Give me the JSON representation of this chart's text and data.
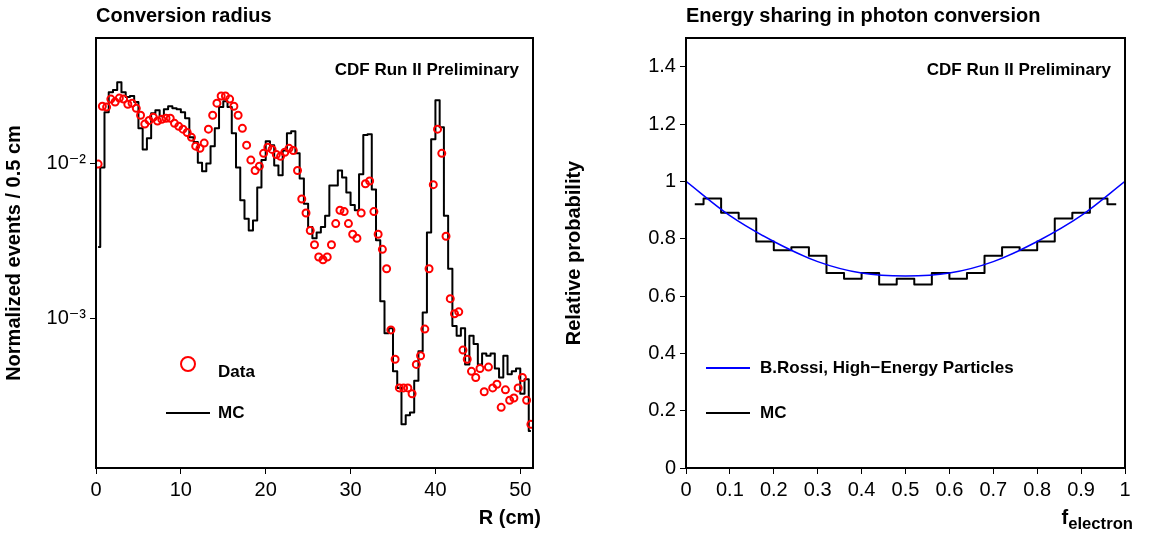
{
  "chart_data": [
    {
      "type": "scatter",
      "title": "Conversion radius",
      "xlabel": "R (cm)",
      "ylabel": "Normalized events / 0.5 cm",
      "annotations": [
        "CDF Run II Preliminary"
      ],
      "log": "y",
      "xlim": [
        0,
        51.5
      ],
      "xticks": [
        0,
        10,
        20,
        30,
        40,
        50
      ],
      "ylim": [
        0.00011,
        0.064
      ],
      "yticks": [
        {
          "value": 0.001,
          "label": "10⁻³"
        },
        {
          "value": 0.01,
          "label": "10⁻²"
        }
      ],
      "grid": false,
      "legend": "bottom left",
      "series": [
        {
          "name": "Data",
          "marker": "circle",
          "color": "#ff0000",
          "x": [
            0.25,
            0.75,
            1.25,
            1.75,
            2.25,
            2.75,
            3.25,
            3.75,
            4.25,
            4.75,
            5.25,
            5.75,
            6.25,
            6.75,
            7.25,
            7.75,
            8.25,
            8.75,
            9.25,
            9.75,
            10.25,
            10.75,
            11.25,
            11.75,
            12.25,
            12.75,
            13.25,
            13.75,
            14.25,
            14.75,
            15.25,
            15.75,
            16.25,
            16.75,
            17.25,
            17.75,
            18.25,
            18.75,
            19.25,
            19.75,
            20.25,
            20.75,
            21.25,
            21.75,
            22.25,
            22.75,
            23.25,
            23.75,
            24.25,
            24.75,
            25.25,
            25.75,
            26.25,
            26.75,
            27.25,
            27.75,
            28.25,
            28.75,
            29.25,
            29.75,
            30.25,
            30.75,
            31.25,
            31.75,
            32.25,
            32.75,
            33.25,
            33.75,
            34.25,
            34.75,
            35.25,
            35.75,
            36.25,
            36.75,
            37.25,
            37.75,
            38.25,
            38.75,
            39.25,
            39.75,
            40.25,
            40.75,
            41.25,
            41.75,
            42.25,
            42.75,
            43.25,
            43.75,
            44.25,
            44.75,
            45.25,
            45.75,
            46.25,
            46.75,
            47.25,
            47.75,
            48.25,
            48.75,
            49.25,
            49.75,
            50.25,
            50.75,
            51.25
          ],
          "values": [
            0.0099,
            0.0233,
            0.023,
            0.0259,
            0.0248,
            0.0263,
            0.0259,
            0.024,
            0.0244,
            0.0226,
            0.0204,
            0.0179,
            0.0189,
            0.0198,
            0.0187,
            0.0192,
            0.0195,
            0.0195,
            0.0181,
            0.0173,
            0.0166,
            0.0158,
            0.0147,
            0.0129,
            0.0125,
            0.0135,
            0.0166,
            0.0204,
            0.0244,
            0.0271,
            0.0271,
            0.0259,
            0.0233,
            0.0204,
            0.0168,
            0.0131,
            0.0105,
            0.009,
            0.0096,
            0.0116,
            0.0127,
            0.0123,
            0.0114,
            0.0111,
            0.0118,
            0.0125,
            0.0121,
            0.009,
            0.0059,
            0.0048,
            0.0037,
            0.003,
            0.0025,
            0.0024,
            0.0025,
            0.003,
            0.0041,
            0.005,
            0.0049,
            0.0041,
            0.0035,
            0.0033,
            0.0048,
            0.0074,
            0.0077,
            0.0049,
            0.0035,
            0.0028,
            0.0021,
            0.00085,
            0.00055,
            0.00036,
            0.00036,
            0.00036,
            0.00033,
            0.00051,
            0.00058,
            0.00086,
            0.0021,
            0.0073,
            0.0166,
            0.0116,
            0.0034,
            0.00135,
            0.00108,
            0.00111,
            0.00063,
            0.00055,
            0.00046,
            0.00042,
            0.00048,
            0.00034,
            0.00049,
            0.00036,
            0.00038,
            0.00027,
            0.00035,
            0.0003,
            0.00031,
            0.00036,
            0.00042,
            0.0003,
            0.00021
          ]
        },
        {
          "name": "MC",
          "type": "step",
          "color": "#000000",
          "x": [
            0.25,
            0.75,
            1.25,
            1.75,
            2.25,
            2.75,
            3.25,
            3.75,
            4.25,
            4.75,
            5.25,
            5.75,
            6.25,
            6.75,
            7.25,
            7.75,
            8.25,
            8.75,
            9.25,
            9.75,
            10.25,
            10.75,
            11.25,
            11.75,
            12.25,
            12.75,
            13.25,
            13.75,
            14.25,
            14.75,
            15.25,
            15.75,
            16.25,
            16.75,
            17.25,
            17.75,
            18.25,
            18.75,
            19.25,
            19.75,
            20.25,
            20.75,
            21.25,
            21.75,
            22.25,
            22.75,
            23.25,
            23.75,
            24.25,
            24.75,
            25.25,
            25.75,
            26.25,
            26.75,
            27.25,
            27.75,
            28.25,
            28.75,
            29.25,
            29.75,
            30.25,
            30.75,
            31.25,
            31.75,
            32.25,
            32.75,
            33.25,
            33.75,
            34.25,
            34.75,
            35.25,
            35.75,
            36.25,
            36.75,
            37.25,
            37.75,
            38.25,
            38.75,
            39.25,
            39.75,
            40.25,
            40.75,
            41.25,
            41.75,
            42.25,
            42.75,
            43.25,
            43.75,
            44.25,
            44.75,
            45.25,
            45.75,
            46.25,
            46.75,
            47.25,
            47.75,
            48.25,
            48.75,
            49.25,
            49.75,
            50.25,
            50.75,
            51.25
          ],
          "values": [
            0.0029,
            0.0094,
            0.0213,
            0.0287,
            0.0296,
            0.0333,
            0.0287,
            0.0267,
            0.0271,
            0.0248,
            0.0168,
            0.0123,
            0.0145,
            0.021,
            0.022,
            0.0201,
            0.0223,
            0.0233,
            0.0226,
            0.0223,
            0.0213,
            0.0195,
            0.0147,
            0.0137,
            0.0101,
            0.0089,
            0.01,
            0.0129,
            0.0168,
            0.023,
            0.0251,
            0.023,
            0.0156,
            0.0094,
            0.0058,
            0.0044,
            0.0037,
            0.0043,
            0.007,
            0.0105,
            0.0139,
            0.0131,
            0.0097,
            0.0084,
            0.0121,
            0.0156,
            0.0161,
            0.0116,
            0.008,
            0.0055,
            0.0039,
            0.0033,
            0.0036,
            0.0039,
            0.0046,
            0.0072,
            0.0072,
            0.009,
            0.0081,
            0.0065,
            0.0054,
            0.005,
            0.0085,
            0.0152,
            0.0154,
            0.0068,
            0.0032,
            0.0013,
            0.00081,
            0.00087,
            0.00046,
            0.00036,
            0.00021,
            0.00024,
            0.00025,
            0.0004,
            0.00062,
            0.0011,
            0.0036,
            0.0143,
            0.0255,
            0.0171,
            0.0046,
            0.0021,
            0.0009,
            0.00078,
            0.00087,
            0.00051,
            0.00078,
            0.00069,
            0.00051,
            0.0006,
            0.00058,
            0.0006,
            0.00048,
            0.00042,
            0.00058,
            0.00044,
            0.00046,
            0.00048,
            0.00033,
            0.00041,
            0.00019
          ]
        }
      ]
    },
    {
      "type": "step",
      "title": "Energy sharing in photon conversion",
      "xlabel": "f$_{electron}$",
      "ylabel": "Relative probability",
      "annotations": [
        "CDF Run II Preliminary"
      ],
      "xlim": [
        0,
        1
      ],
      "xticks": [
        0,
        0.1,
        0.2,
        0.3,
        0.4,
        0.5,
        0.6,
        0.7,
        0.8,
        0.9,
        1
      ],
      "ylim": [
        0,
        1.5
      ],
      "yticks": [
        0,
        0.2,
        0.4,
        0.6,
        0.8,
        1,
        1.2,
        1.4
      ],
      "grid": false,
      "legend": "bottom left",
      "series": [
        {
          "name": "B.Rossi, High−Energy Particles",
          "type": "line",
          "color": "#0000ff",
          "x": [
            0,
            0.1,
            0.2,
            0.3,
            0.4,
            0.5,
            0.6,
            0.7,
            0.8,
            0.9,
            1
          ],
          "values": [
            1,
            0.88,
            0.79,
            0.72,
            0.68,
            0.67,
            0.68,
            0.72,
            0.79,
            0.88,
            1
          ]
        },
        {
          "name": "MC",
          "color": "#000000",
          "x": [
            0.02,
            0.06,
            0.1,
            0.14,
            0.18,
            0.22,
            0.26,
            0.3,
            0.34,
            0.38,
            0.42,
            0.46,
            0.5,
            0.54,
            0.58,
            0.62,
            0.66,
            0.7,
            0.74,
            0.78,
            0.82,
            0.86,
            0.9,
            0.94,
            0.98
          ],
          "values": [
            0.92,
            0.94,
            0.89,
            0.87,
            0.79,
            0.76,
            0.77,
            0.74,
            0.68,
            0.66,
            0.68,
            0.64,
            0.66,
            0.64,
            0.68,
            0.66,
            0.68,
            0.74,
            0.77,
            0.76,
            0.79,
            0.87,
            0.89,
            0.94,
            0.92
          ]
        }
      ]
    }
  ]
}
